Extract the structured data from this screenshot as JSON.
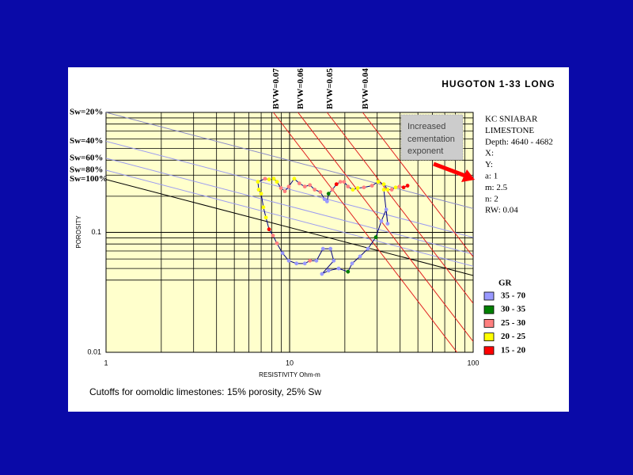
{
  "chart_data": {
    "type": "pickett",
    "title": "HUGOTON 1-33 LONG",
    "x_label": "RESISTIVITY Ohm-m",
    "y_label": "POROSITY",
    "xlim": [
      1,
      100
    ],
    "ylim": [
      0.01,
      1
    ],
    "log_x": true,
    "log_y": true,
    "xticks": [
      1,
      10,
      100
    ],
    "yticks": [
      0.01,
      0.1
    ],
    "xminor": [
      2,
      3,
      4,
      5,
      6,
      7,
      8,
      9,
      20,
      30,
      40,
      50,
      60,
      70,
      80,
      90
    ],
    "yminor": [
      0.04,
      0.05,
      0.06,
      0.07,
      0.08,
      0.09,
      0.2,
      0.3,
      0.4,
      0.5,
      0.6,
      0.7,
      0.8,
      0.9
    ],
    "sw_lines": [
      {
        "name": "Sw=20%",
        "color": "#8a8ac8",
        "x": [
          1,
          100
        ],
        "y": [
          1.0,
          0.158
        ]
      },
      {
        "name": "Sw=40%",
        "color": "#9c9cf0",
        "x": [
          1,
          100
        ],
        "y": [
          0.574,
          0.0908
        ]
      },
      {
        "name": "Sw=60%",
        "color": "#9c9cf0",
        "x": [
          1,
          100
        ],
        "y": [
          0.415,
          0.0657
        ]
      },
      {
        "name": "Sw=80%",
        "color": "#9c9cf0",
        "x": [
          1,
          100
        ],
        "y": [
          0.33,
          0.0522
        ]
      },
      {
        "name": "Sw=100%",
        "color": "#000000",
        "x": [
          1,
          100
        ],
        "y": [
          0.276,
          0.0437
        ]
      }
    ],
    "bvw_lines": [
      {
        "name": "BVW=0.07",
        "color": "#e02020",
        "x": [
          8.16,
          100
        ],
        "y": [
          1,
          0.00666
        ]
      },
      {
        "name": "BVW=0.06",
        "color": "#e02020",
        "x": [
          11.11,
          100
        ],
        "y": [
          1,
          0.0123
        ]
      },
      {
        "name": "BVW=0.05",
        "color": "#e02020",
        "x": [
          16,
          100
        ],
        "y": [
          1,
          0.0256
        ]
      },
      {
        "name": "BVW=0.04",
        "color": "#e02020",
        "x": [
          25,
          100
        ],
        "y": [
          1,
          0.0625
        ]
      }
    ],
    "trace": {
      "color": "#000080",
      "x": [
        43.9,
        41.8,
        39.7,
        37.8,
        36.0,
        34.2,
        32.6,
        30.4,
        28.1,
        25.4,
        23.5,
        22.1,
        20.8,
        19.8,
        18.9,
        18.0,
        17.1,
        16.3,
        16.0,
        15.5,
        14.7,
        13.7,
        12.9,
        12.1,
        11.3,
        10.6,
        9.9,
        9.42,
        8.97,
        8.53,
        8.2,
        7.73,
        7.35,
        6.72,
        6.79,
        7.0,
        7.2,
        7.43,
        7.73,
        8.12,
        8.53,
        9.15,
        9.9,
        10.9,
        12.1,
        12.9,
        14.0,
        15.2,
        16.7,
        17.4,
        15.0,
        16.3,
        18.5,
        20.8,
        21.9,
        24.2,
        26.7,
        29.5,
        31.6,
        33.6,
        34.2,
        32.6
      ],
      "y": [
        0.245,
        0.237,
        0.241,
        0.237,
        0.227,
        0.227,
        0.252,
        0.264,
        0.245,
        0.237,
        0.234,
        0.227,
        0.241,
        0.264,
        0.264,
        0.252,
        0.227,
        0.21,
        0.181,
        0.189,
        0.217,
        0.227,
        0.248,
        0.241,
        0.256,
        0.28,
        0.241,
        0.22,
        0.234,
        0.264,
        0.28,
        0.276,
        0.28,
        0.264,
        0.227,
        0.21,
        0.162,
        0.133,
        0.106,
        0.094,
        0.081,
        0.067,
        0.058,
        0.055,
        0.055,
        0.058,
        0.058,
        0.073,
        0.073,
        0.058,
        0.045,
        0.048,
        0.05,
        0.047,
        0.055,
        0.063,
        0.073,
        0.091,
        0.124,
        0.155,
        0.118,
        0.227
      ],
      "point_colors": [
        "#ff0000",
        "#ff0000",
        "#ff8080",
        "#ffff00",
        "#ff8080",
        "#ffff00",
        "#ffff00",
        "#ffff00",
        "#ff8080",
        "#ff8080",
        "#ffff00",
        "#ffff00",
        "#ff8080",
        "#ff8080",
        "#ff8080",
        "#ff0000",
        "#ff8080",
        "#008000",
        "#9999ff",
        "#9999ff",
        "#ff8080",
        "#ff8080",
        "#ff8080",
        "#ff8080",
        "#ff8080",
        "#ffff00",
        "#ff8080",
        "#ff8080",
        "#ff8080",
        "#ffff00",
        "#ffff00",
        "#ffff00",
        "#ff8080",
        "#ffff00",
        "#ffff00",
        "#ffff00",
        "#ffff00",
        "#ffff00",
        "#ff0000",
        "#ff8080",
        "#ff8080",
        "#9999ff",
        "#9999ff",
        "#9999ff",
        "#9999ff",
        "#ff8080",
        "#9999ff",
        "#9999ff",
        "#9999ff",
        "#9999ff",
        "#9999ff",
        "#9999ff",
        "#9999ff",
        "#008000",
        "#9999ff",
        "#9999ff",
        "#9999ff",
        "#008000",
        "#9999ff",
        "#9999ff",
        "#9999ff",
        "#ffff00"
      ]
    },
    "legend": {
      "title": "GR",
      "entries": [
        {
          "label": "35 - 70",
          "color": "#9999ff"
        },
        {
          "label": "30 - 35",
          "color": "#008000"
        },
        {
          "label": "25 - 30",
          "color": "#ff8080"
        },
        {
          "label": "20 - 25",
          "color": "#ffff00"
        },
        {
          "label": "15 - 20",
          "color": "#ff0000"
        }
      ]
    },
    "info": [
      "KC SNIABAR",
      "LIMESTONE",
      "Depth: 4640 - 4682",
      "X:",
      "Y:",
      "a: 1",
      "m: 2.5",
      "n: 2",
      "RW: 0.04"
    ],
    "annotation": [
      "Increased",
      "cementation",
      "exponent"
    ],
    "footnote": "Cutoffs for oomoldic limestones: 15% porosity, 25% Sw"
  }
}
